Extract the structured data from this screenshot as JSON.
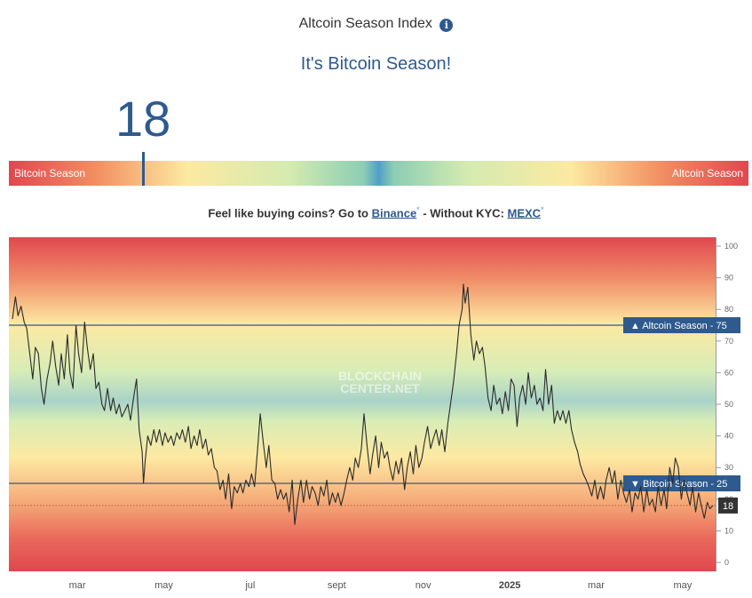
{
  "header": {
    "title": "Altcoin Season Index",
    "info_icon": "i",
    "subtitle": "It's Bitcoin Season!",
    "index_value": "18"
  },
  "gauge": {
    "left_label": "Bitcoin Season",
    "right_label": "Altcoin Season",
    "value": 18
  },
  "promo": {
    "prefix": "Feel like buying coins? Go to ",
    "binance": "Binance",
    "middle": " - Without KYC: ",
    "mexc": "MEXC",
    "star": "*"
  },
  "chart_data": {
    "type": "line",
    "watermark": [
      "BLOCKCHAIN",
      "CENTER.NET"
    ],
    "ylim": [
      0,
      100
    ],
    "y_ticks": [
      0,
      10,
      20,
      30,
      40,
      50,
      60,
      70,
      80,
      90,
      100
    ],
    "x_labels": [
      "mar",
      "may",
      "jul",
      "sept",
      "nov",
      "2025",
      "mar",
      "may"
    ],
    "x_label_pos": [
      0.5,
      2.5,
      4.5,
      6.5,
      8.5,
      10.5,
      12.5,
      14.5
    ],
    "xlim": [
      -1.0,
      15.2
    ],
    "thresholds": [
      {
        "label": "▲ Altcoin Season - 75",
        "value": 75
      },
      {
        "label": "▼ Bitcoin Season - 25",
        "value": 25
      }
    ],
    "current": {
      "label": "18",
      "value": 18
    },
    "series": [
      {
        "values": [
          [
            -1.0,
            77
          ],
          [
            -0.93,
            84
          ],
          [
            -0.87,
            78
          ],
          [
            -0.8,
            81
          ],
          [
            -0.73,
            76
          ],
          [
            -0.67,
            74
          ],
          [
            -0.6,
            66
          ],
          [
            -0.53,
            58
          ],
          [
            -0.47,
            68
          ],
          [
            -0.4,
            66
          ],
          [
            -0.33,
            55
          ],
          [
            -0.27,
            50
          ],
          [
            -0.2,
            58
          ],
          [
            -0.13,
            63
          ],
          [
            -0.07,
            70
          ],
          [
            0.0,
            62
          ],
          [
            0.07,
            56
          ],
          [
            0.13,
            66
          ],
          [
            0.2,
            58
          ],
          [
            0.27,
            72
          ],
          [
            0.33,
            60
          ],
          [
            0.4,
            55
          ],
          [
            0.47,
            75
          ],
          [
            0.53,
            66
          ],
          [
            0.6,
            60
          ],
          [
            0.67,
            76
          ],
          [
            0.73,
            68
          ],
          [
            0.8,
            61
          ],
          [
            0.87,
            66
          ],
          [
            0.93,
            55
          ],
          [
            1.0,
            57
          ],
          [
            1.07,
            50
          ],
          [
            1.13,
            48
          ],
          [
            1.2,
            55
          ],
          [
            1.27,
            48
          ],
          [
            1.33,
            52
          ],
          [
            1.4,
            47
          ],
          [
            1.47,
            50
          ],
          [
            1.53,
            46
          ],
          [
            1.6,
            48
          ],
          [
            1.67,
            50
          ],
          [
            1.73,
            45
          ],
          [
            1.8,
            52
          ],
          [
            1.87,
            58
          ],
          [
            1.93,
            42
          ],
          [
            2.0,
            35
          ],
          [
            2.03,
            25
          ],
          [
            2.07,
            32
          ],
          [
            2.13,
            40
          ],
          [
            2.2,
            37
          ],
          [
            2.27,
            42
          ],
          [
            2.33,
            38
          ],
          [
            2.4,
            42
          ],
          [
            2.47,
            37
          ],
          [
            2.53,
            41
          ],
          [
            2.6,
            38
          ],
          [
            2.67,
            40
          ],
          [
            2.73,
            37
          ],
          [
            2.8,
            41
          ],
          [
            2.87,
            39
          ],
          [
            2.93,
            42
          ],
          [
            3.0,
            38
          ],
          [
            3.07,
            43
          ],
          [
            3.13,
            36
          ],
          [
            3.2,
            40
          ],
          [
            3.27,
            37
          ],
          [
            3.33,
            42
          ],
          [
            3.4,
            36
          ],
          [
            3.47,
            39
          ],
          [
            3.53,
            34
          ],
          [
            3.6,
            36
          ],
          [
            3.67,
            30
          ],
          [
            3.73,
            29
          ],
          [
            3.8,
            23
          ],
          [
            3.87,
            26
          ],
          [
            3.93,
            20
          ],
          [
            4.0,
            28
          ],
          [
            4.07,
            17
          ],
          [
            4.13,
            24
          ],
          [
            4.2,
            22
          ],
          [
            4.27,
            25
          ],
          [
            4.33,
            22
          ],
          [
            4.4,
            26
          ],
          [
            4.47,
            24
          ],
          [
            4.53,
            28
          ],
          [
            4.6,
            24
          ],
          [
            4.67,
            36
          ],
          [
            4.73,
            47
          ],
          [
            4.8,
            38
          ],
          [
            4.87,
            30
          ],
          [
            4.93,
            37
          ],
          [
            5.0,
            26
          ],
          [
            5.07,
            25
          ],
          [
            5.13,
            20
          ],
          [
            5.2,
            23
          ],
          [
            5.27,
            20
          ],
          [
            5.33,
            22
          ],
          [
            5.4,
            16
          ],
          [
            5.47,
            26
          ],
          [
            5.53,
            12
          ],
          [
            5.6,
            20
          ],
          [
            5.67,
            26
          ],
          [
            5.73,
            19
          ],
          [
            5.8,
            26
          ],
          [
            5.87,
            20
          ],
          [
            5.93,
            24
          ],
          [
            6.0,
            22
          ],
          [
            6.07,
            18
          ],
          [
            6.13,
            24
          ],
          [
            6.2,
            21
          ],
          [
            6.27,
            26
          ],
          [
            6.33,
            18
          ],
          [
            6.4,
            22
          ],
          [
            6.47,
            19
          ],
          [
            6.53,
            22
          ],
          [
            6.6,
            18
          ],
          [
            6.67,
            22
          ],
          [
            6.73,
            26
          ],
          [
            6.8,
            30
          ],
          [
            6.87,
            26
          ],
          [
            6.93,
            33
          ],
          [
            7.0,
            30
          ],
          [
            7.07,
            36
          ],
          [
            7.13,
            47
          ],
          [
            7.2,
            37
          ],
          [
            7.27,
            28
          ],
          [
            7.33,
            34
          ],
          [
            7.4,
            40
          ],
          [
            7.47,
            30
          ],
          [
            7.53,
            38
          ],
          [
            7.6,
            33
          ],
          [
            7.67,
            35
          ],
          [
            7.73,
            30
          ],
          [
            7.8,
            26
          ],
          [
            7.87,
            32
          ],
          [
            7.93,
            28
          ],
          [
            8.0,
            33
          ],
          [
            8.07,
            23
          ],
          [
            8.13,
            30
          ],
          [
            8.2,
            35
          ],
          [
            8.27,
            28
          ],
          [
            8.33,
            37
          ],
          [
            8.4,
            30
          ],
          [
            8.47,
            33
          ],
          [
            8.53,
            38
          ],
          [
            8.6,
            43
          ],
          [
            8.67,
            36
          ],
          [
            8.73,
            39
          ],
          [
            8.8,
            42
          ],
          [
            8.87,
            37
          ],
          [
            8.93,
            42
          ],
          [
            9.0,
            35
          ],
          [
            9.07,
            44
          ],
          [
            9.13,
            50
          ],
          [
            9.2,
            57
          ],
          [
            9.27,
            66
          ],
          [
            9.33,
            75
          ],
          [
            9.4,
            80
          ],
          [
            9.43,
            88
          ],
          [
            9.47,
            82
          ],
          [
            9.53,
            87
          ],
          [
            9.6,
            72
          ],
          [
            9.67,
            64
          ],
          [
            9.73,
            70
          ],
          [
            9.8,
            66
          ],
          [
            9.87,
            68
          ],
          [
            9.93,
            62
          ],
          [
            10.0,
            52
          ],
          [
            10.07,
            48
          ],
          [
            10.13,
            56
          ],
          [
            10.2,
            50
          ],
          [
            10.27,
            52
          ],
          [
            10.33,
            47
          ],
          [
            10.4,
            54
          ],
          [
            10.47,
            48
          ],
          [
            10.53,
            58
          ],
          [
            10.6,
            56
          ],
          [
            10.67,
            43
          ],
          [
            10.73,
            52
          ],
          [
            10.8,
            56
          ],
          [
            10.87,
            50
          ],
          [
            10.93,
            60
          ],
          [
            11.0,
            52
          ],
          [
            11.07,
            56
          ],
          [
            11.13,
            50
          ],
          [
            11.2,
            52
          ],
          [
            11.27,
            48
          ],
          [
            11.33,
            61
          ],
          [
            11.4,
            50
          ],
          [
            11.47,
            56
          ],
          [
            11.53,
            44
          ],
          [
            11.6,
            48
          ],
          [
            11.67,
            45
          ],
          [
            11.73,
            48
          ],
          [
            11.8,
            44
          ],
          [
            11.87,
            48
          ],
          [
            11.93,
            42
          ],
          [
            12.0,
            38
          ],
          [
            12.07,
            35
          ],
          [
            12.13,
            31
          ],
          [
            12.2,
            28
          ],
          [
            12.27,
            26
          ],
          [
            12.33,
            24
          ],
          [
            12.4,
            21
          ],
          [
            12.47,
            26
          ],
          [
            12.53,
            20
          ],
          [
            12.6,
            24
          ],
          [
            12.67,
            20
          ],
          [
            12.73,
            26
          ],
          [
            12.8,
            30
          ],
          [
            12.87,
            25
          ],
          [
            12.93,
            29
          ],
          [
            13.0,
            20
          ],
          [
            13.07,
            26
          ],
          [
            13.13,
            22
          ],
          [
            13.2,
            19
          ],
          [
            13.27,
            23
          ],
          [
            13.33,
            16
          ],
          [
            13.4,
            22
          ],
          [
            13.47,
            20
          ],
          [
            13.53,
            24
          ],
          [
            13.6,
            16
          ],
          [
            13.67,
            23
          ],
          [
            13.73,
            18
          ],
          [
            13.8,
            20
          ],
          [
            13.87,
            16
          ],
          [
            13.93,
            24
          ],
          [
            14.0,
            18
          ],
          [
            14.07,
            23
          ],
          [
            14.13,
            17
          ],
          [
            14.2,
            30
          ],
          [
            14.27,
            25
          ],
          [
            14.33,
            33
          ],
          [
            14.4,
            30
          ],
          [
            14.47,
            20
          ],
          [
            14.53,
            26
          ],
          [
            14.6,
            22
          ],
          [
            14.67,
            18
          ],
          [
            14.73,
            24
          ],
          [
            14.8,
            16
          ],
          [
            14.87,
            22
          ],
          [
            14.93,
            18
          ],
          [
            15.0,
            14
          ],
          [
            15.07,
            19
          ],
          [
            15.13,
            17
          ],
          [
            15.2,
            18
          ]
        ]
      }
    ]
  }
}
